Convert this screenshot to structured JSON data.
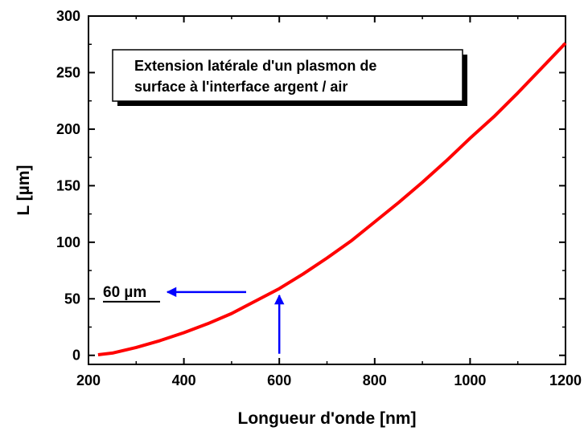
{
  "chart_data": {
    "type": "line",
    "title": "",
    "xlabel": "Longueur d'onde [nm]",
    "ylabel": "L [µm]",
    "xlim": [
      200,
      1200
    ],
    "ylim": [
      -8,
      300
    ],
    "xticks": [
      200,
      400,
      600,
      800,
      1000,
      1200
    ],
    "yticks": [
      0,
      50,
      100,
      150,
      200,
      250,
      300
    ],
    "grid": false,
    "series": [
      {
        "name": "",
        "color": "#ff0000",
        "x": [
          220,
          250,
          300,
          350,
          400,
          450,
          500,
          550,
          600,
          650,
          700,
          750,
          800,
          850,
          900,
          950,
          1000,
          1050,
          1100,
          1150,
          1200
        ],
        "y": [
          0.5,
          2,
          7,
          13,
          20,
          28,
          37,
          48,
          59,
          72,
          86,
          101,
          118,
          135,
          153,
          172,
          192,
          211,
          232,
          254,
          276
        ]
      }
    ],
    "annotation_box": {
      "lines": [
        "Extension latérale d'un plasmon de",
        "surface à l'interface argent / air"
      ]
    },
    "annotations": [
      {
        "text": "60 µm",
        "underline": true,
        "arrow_color": "#0000ff"
      }
    ]
  }
}
